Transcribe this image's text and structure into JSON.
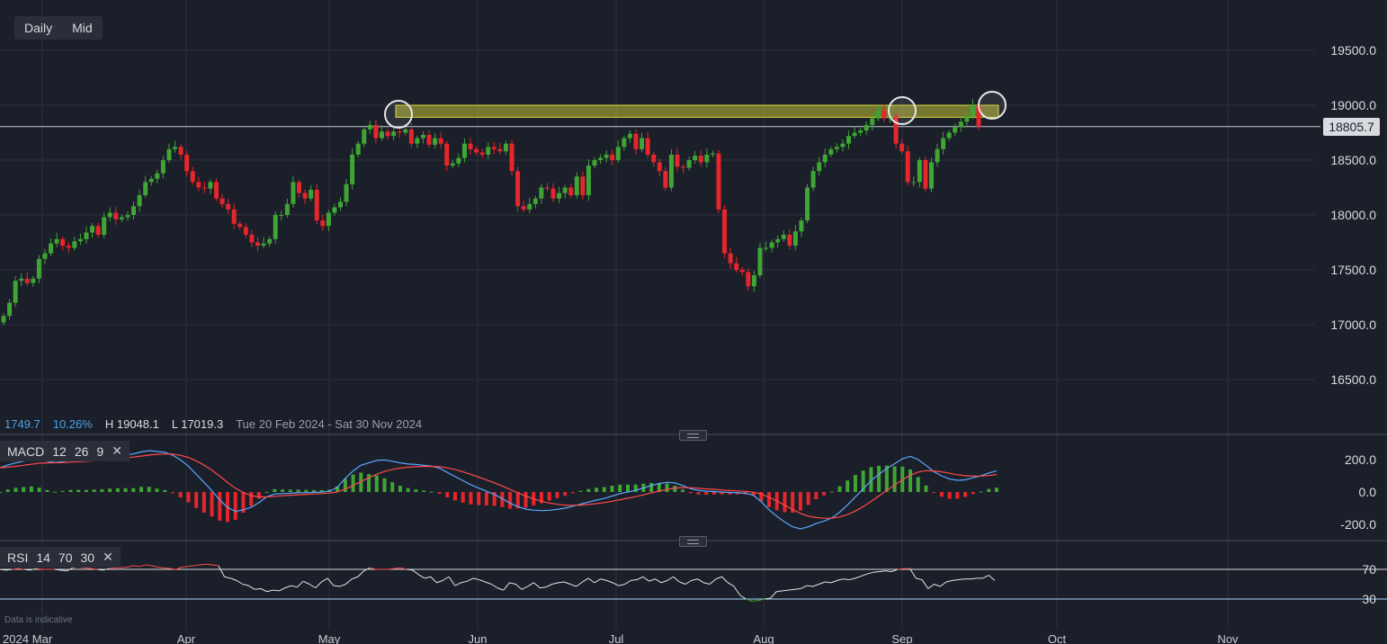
{
  "toolbar": {
    "interval": "Daily",
    "price_type": "Mid"
  },
  "status": {
    "change": "1749.7",
    "change_pct": "10.26%",
    "high": "H 19048.1",
    "low": "L 17019.3",
    "range": "Tue 20 Feb 2024 - Sat 30 Nov 2024"
  },
  "last_price": "18805.7",
  "macd": {
    "name": "MACD",
    "fast": "12",
    "slow": "26",
    "signal": "9"
  },
  "rsi": {
    "name": "RSI",
    "period": "14",
    "upper": "70",
    "lower": "30"
  },
  "disclaimer": "Data is indicative",
  "colors": {
    "up": "#3fa535",
    "down": "#e5262b",
    "background": "#1b1f29",
    "zone": "#e8e43a",
    "macd_line": "#5aa7ff",
    "signal_line": "#ff4a4a"
  },
  "chart_data": [
    {
      "type": "candlestick",
      "y_ticks": [
        "19500.0",
        "19000.0",
        "18500.0",
        "18000.0",
        "17500.0",
        "17000.0",
        "16500.0"
      ],
      "x_ticks": [
        "2024",
        "Mar",
        "Apr",
        "May",
        "Jun",
        "Jul",
        "Aug",
        "Sep",
        "Oct",
        "Nov"
      ],
      "ylim": [
        16000,
        19800
      ],
      "last_price": 18805.7,
      "resistance_zone": [
        18890,
        19000
      ],
      "highlight_circles": [
        "May-15",
        "Aug-30",
        "Sep-19"
      ],
      "closes": [
        17080,
        17200,
        17400,
        17420,
        17380,
        17420,
        17600,
        17650,
        17740,
        17780,
        17720,
        17700,
        17760,
        17780,
        17840,
        17900,
        17820,
        17980,
        18020,
        17960,
        17980,
        18000,
        18080,
        18180,
        18300,
        18330,
        18380,
        18500,
        18600,
        18620,
        18550,
        18400,
        18300,
        18250,
        18240,
        18300,
        18150,
        18100,
        18050,
        17920,
        17890,
        17820,
        17750,
        17720,
        17740,
        17780,
        18000,
        18000,
        18100,
        18300,
        18200,
        18150,
        18230,
        17950,
        17900,
        18020,
        18070,
        18120,
        18280,
        18550,
        18650,
        18780,
        18820,
        18700,
        18760,
        18720,
        18760,
        18750,
        18780,
        18650,
        18700,
        18730,
        18640,
        18700,
        18650,
        18450,
        18470,
        18520,
        18650,
        18600,
        18570,
        18550,
        18620,
        18600,
        18580,
        18650,
        18400,
        18080,
        18050,
        18100,
        18150,
        18250,
        18240,
        18150,
        18200,
        18250,
        18180,
        18350,
        18180,
        18450,
        18500,
        18520,
        18550,
        18500,
        18620,
        18700,
        18740,
        18600,
        18700,
        18550,
        18480,
        18400,
        18250,
        18550,
        18440,
        18430,
        18500,
        18540,
        18480,
        18550,
        18560,
        18050,
        17650,
        17560,
        17500,
        17480,
        17350,
        17450,
        17700,
        17700,
        17750,
        17780,
        17820,
        17720,
        17850,
        17950,
        18250,
        18400,
        18480,
        18550,
        18600,
        18620,
        18650,
        18720,
        18750,
        18770,
        18820,
        18880,
        18950,
        18880,
        18900,
        18650,
        18580,
        18300,
        18300,
        18500,
        18240,
        18480,
        18600,
        18700,
        18750,
        18800,
        18850,
        18900,
        19000,
        18805.7
      ]
    },
    {
      "type": "line",
      "name": "MACD",
      "y_ticks": [
        "200.0",
        "0.0",
        "-200.0"
      ],
      "ylim": [
        -270,
        270
      ],
      "macd": [
        150,
        166,
        180,
        190,
        200,
        200,
        190,
        182,
        187,
        195,
        198,
        200,
        205,
        210,
        218,
        225,
        230,
        235,
        248,
        255,
        250,
        245,
        228,
        198,
        160,
        110,
        60,
        8,
        -50,
        -95,
        -120,
        -110,
        -95,
        -65,
        -30,
        -12,
        -10,
        -8,
        -5,
        -4,
        -2,
        0,
        5,
        30,
        85,
        130,
        165,
        180,
        195,
        198,
        190,
        180,
        173,
        170,
        165,
        160,
        147,
        121,
        95,
        70,
        45,
        24,
        5,
        -15,
        -40,
        -70,
        -90,
        -106,
        -112,
        -115,
        -113,
        -108,
        -100,
        -88,
        -75,
        -62,
        -50,
        -40,
        -25,
        -10,
        0,
        10,
        25,
        40,
        52,
        60,
        56,
        40,
        20,
        10,
        5,
        3,
        0,
        -3,
        -5,
        -8,
        -20,
        -60,
        -110,
        -150,
        -185,
        -215,
        -228,
        -215,
        -195,
        -180,
        -160,
        -125,
        -80,
        -30,
        20,
        70,
        110,
        145,
        175,
        205,
        220,
        200,
        165,
        125,
        100,
        80,
        72,
        75,
        88,
        100,
        118,
        130
      ]
    },
    {
      "type": "line",
      "name": "RSI",
      "y_ticks": [
        "70",
        "30"
      ],
      "ylim": [
        20,
        82
      ],
      "values": [
        70,
        69,
        70,
        71,
        70,
        69,
        71,
        70,
        70,
        70,
        69,
        68,
        72,
        73,
        72,
        71,
        70,
        69,
        71,
        72,
        72,
        73,
        75,
        74,
        76,
        75,
        73,
        72,
        71,
        70,
        73,
        74,
        75,
        76,
        77,
        76,
        75,
        60,
        58,
        55,
        50,
        48,
        43,
        44,
        40,
        42,
        41,
        45,
        48,
        46,
        54,
        50,
        45,
        53,
        58,
        48,
        47,
        50,
        57,
        60,
        68,
        72,
        70,
        70,
        70,
        71,
        72,
        70,
        69,
        63,
        58,
        60,
        52,
        55,
        60,
        48,
        52,
        54,
        58,
        56,
        53,
        50,
        45,
        42,
        52,
        50,
        43,
        47,
        52,
        45,
        46,
        50,
        52,
        53,
        50,
        47,
        53,
        58,
        52,
        57,
        55,
        52,
        48,
        50,
        55,
        56,
        60,
        54,
        57,
        52,
        55,
        60,
        53,
        50,
        55,
        57,
        52,
        50,
        57,
        60,
        52,
        47,
        35,
        30,
        27,
        28,
        30,
        31,
        40,
        41,
        42,
        43,
        44,
        48,
        47,
        50,
        53,
        52,
        55,
        57,
        56,
        58,
        61,
        64,
        66,
        67,
        68,
        67,
        70,
        71,
        71,
        58,
        56,
        44,
        50,
        47,
        53,
        55,
        56,
        57,
        57,
        58,
        58,
        62,
        55
      ]
    }
  ]
}
